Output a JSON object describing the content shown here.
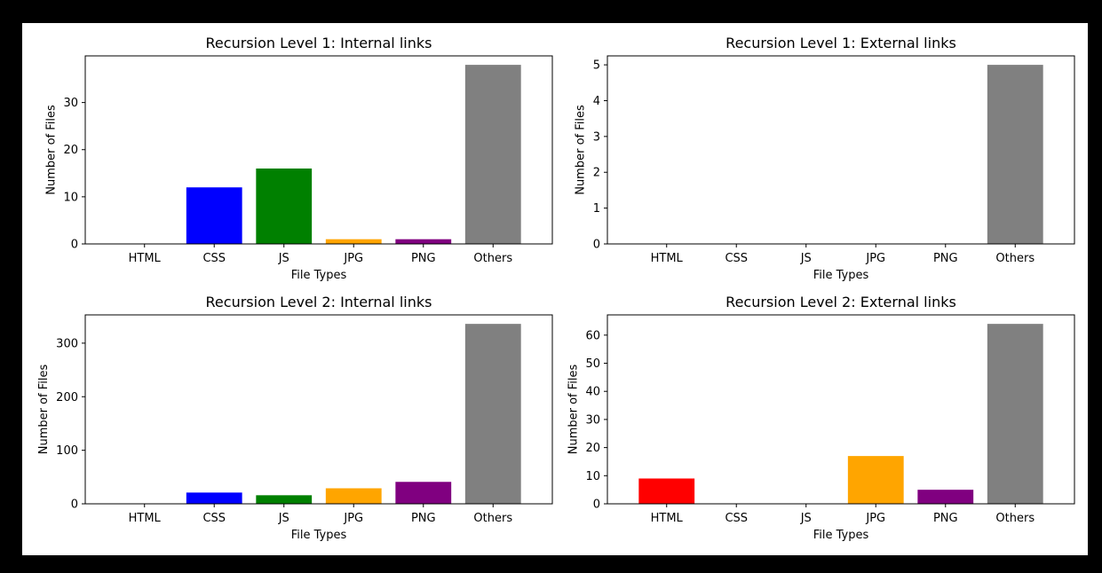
{
  "chart_data": [
    {
      "type": "bar",
      "title": "Recursion Level 1: Internal links",
      "xlabel": "File Types",
      "ylabel": "Number of Files",
      "categories": [
        "HTML",
        "CSS",
        "JS",
        "JPG",
        "PNG",
        "Others"
      ],
      "values": [
        0,
        12,
        16,
        1,
        1,
        38
      ],
      "colors": [
        "#ff0000",
        "#0000ff",
        "#008000",
        "#ffa500",
        "#800080",
        "#808080"
      ],
      "ylim": [
        0,
        39.9
      ],
      "yticks": [
        0,
        10,
        20,
        30
      ],
      "grid": false
    },
    {
      "type": "bar",
      "title": "Recursion Level 1: External links",
      "xlabel": "File Types",
      "ylabel": "Number of Files",
      "categories": [
        "HTML",
        "CSS",
        "JS",
        "JPG",
        "PNG",
        "Others"
      ],
      "values": [
        0,
        0,
        0,
        0,
        0,
        5
      ],
      "colors": [
        "#ff0000",
        "#0000ff",
        "#008000",
        "#ffa500",
        "#800080",
        "#808080"
      ],
      "ylim": [
        0,
        5.25
      ],
      "yticks": [
        0,
        1,
        2,
        3,
        4,
        5
      ],
      "grid": false
    },
    {
      "type": "bar",
      "title": "Recursion Level 2: Internal links",
      "xlabel": "File Types",
      "ylabel": "Number of Files",
      "categories": [
        "HTML",
        "CSS",
        "JS",
        "JPG",
        "PNG",
        "Others"
      ],
      "values": [
        0,
        21,
        16,
        29,
        41,
        336
      ],
      "colors": [
        "#ff0000",
        "#0000ff",
        "#008000",
        "#ffa500",
        "#800080",
        "#808080"
      ],
      "ylim": [
        0,
        352.8
      ],
      "yticks": [
        0,
        100,
        200,
        300
      ],
      "grid": false
    },
    {
      "type": "bar",
      "title": "Recursion Level 2: External links",
      "xlabel": "File Types",
      "ylabel": "Number of Files",
      "categories": [
        "HTML",
        "CSS",
        "JS",
        "JPG",
        "PNG",
        "Others"
      ],
      "values": [
        9,
        0,
        0,
        17,
        5,
        64
      ],
      "colors": [
        "#ff0000",
        "#0000ff",
        "#008000",
        "#ffa500",
        "#800080",
        "#808080"
      ],
      "ylim": [
        0,
        67.2
      ],
      "yticks": [
        0,
        10,
        20,
        30,
        40,
        50,
        60
      ],
      "grid": false
    }
  ]
}
